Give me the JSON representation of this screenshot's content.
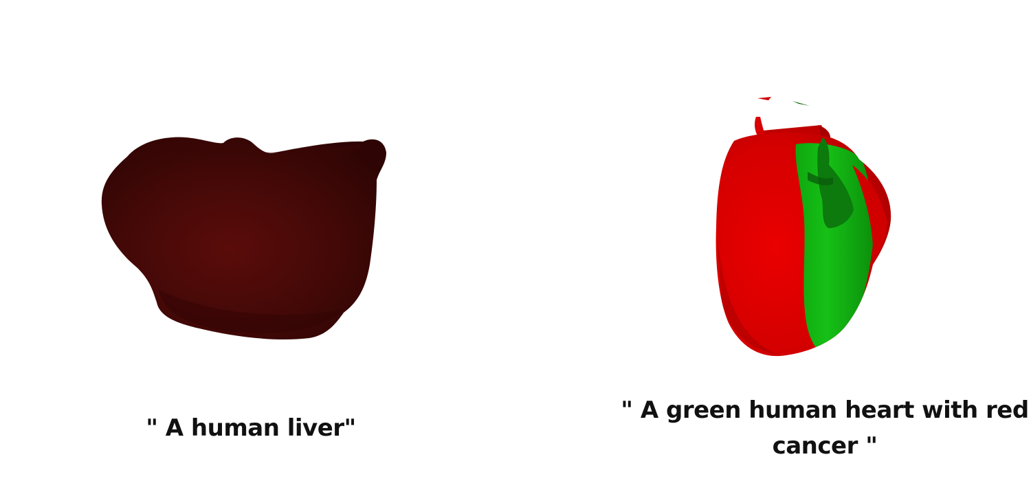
{
  "captions": {
    "left": "\" A human liver\"",
    "right": "\" A green human heart with red cancer \""
  },
  "renders": {
    "left": {
      "subject": "liver-3d-render",
      "color": "#4a0a08"
    },
    "right": {
      "subject": "heart-3d-render",
      "colors": {
        "red": "#e00000",
        "green": "#12b512"
      }
    }
  }
}
